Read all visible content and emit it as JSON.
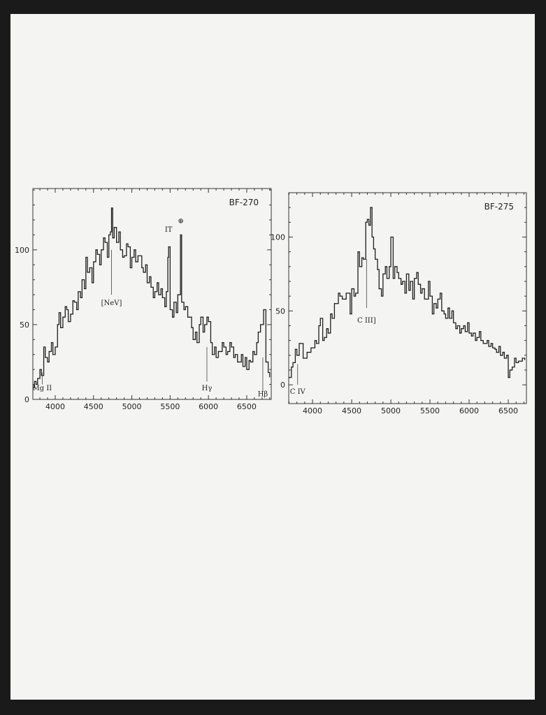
{
  "chart_data": [
    {
      "type": "line",
      "title": "BF-270",
      "xlabel": "",
      "ylabel": "",
      "xlim": [
        3708,
        6820
      ],
      "ylim": [
        0,
        141
      ],
      "xticks": [
        4000,
        4500,
        5000,
        5500,
        6000,
        6500
      ],
      "yticks": [
        0,
        50,
        100
      ],
      "grid": false,
      "annotations": [
        {
          "label": "Mg II",
          "x": 3830,
          "y_line": [
            10,
            18
          ],
          "ly": 6
        },
        {
          "label": "[NeV]",
          "x": 4735,
          "y_line": [
            70,
            100
          ],
          "ly": 63
        },
        {
          "label": "IT",
          "x": 5480,
          "y_line": [
            108,
            108
          ],
          "ly": 112
        },
        {
          "label": "⊕",
          "x": 5640,
          "y_line": [
            118,
            118
          ],
          "ly": 118
        },
        {
          "label": "Hγ",
          "x": 5980,
          "y_line": [
            12,
            35
          ],
          "ly": 6
        },
        {
          "label": "Hβ",
          "x": 6710,
          "y_line": [
            5,
            28
          ],
          "ly": 2
        }
      ],
      "x": [
        3710,
        3730,
        3750,
        3770,
        3800,
        3820,
        3850,
        3870,
        3900,
        3920,
        3950,
        3970,
        4000,
        4030,
        4050,
        4070,
        4100,
        4130,
        4150,
        4170,
        4200,
        4230,
        4250,
        4280,
        4300,
        4330,
        4350,
        4380,
        4400,
        4420,
        4450,
        4480,
        4500,
        4530,
        4550,
        4580,
        4600,
        4630,
        4650,
        4680,
        4700,
        4720,
        4735,
        4750,
        4770,
        4800,
        4830,
        4850,
        4880,
        4900,
        4930,
        4950,
        4980,
        5000,
        5030,
        5050,
        5080,
        5100,
        5130,
        5150,
        5180,
        5200,
        5230,
        5250,
        5280,
        5300,
        5330,
        5350,
        5380,
        5400,
        5430,
        5450,
        5470,
        5480,
        5500,
        5530,
        5550,
        5580,
        5600,
        5620,
        5635,
        5650,
        5680,
        5700,
        5730,
        5750,
        5780,
        5800,
        5830,
        5850,
        5880,
        5900,
        5930,
        5950,
        5980,
        6000,
        6030,
        6050,
        6080,
        6100,
        6130,
        6150,
        6180,
        6200,
        6230,
        6250,
        6280,
        6300,
        6330,
        6350,
        6380,
        6400,
        6430,
        6450,
        6480,
        6500,
        6530,
        6550,
        6580,
        6600,
        6630,
        6650,
        6680,
        6700,
        6720,
        6750,
        6780,
        6800
      ],
      "y": [
        8,
        12,
        10,
        14,
        20,
        16,
        35,
        28,
        25,
        32,
        38,
        30,
        35,
        50,
        58,
        48,
        55,
        62,
        60,
        52,
        57,
        66,
        65,
        60,
        72,
        68,
        80,
        74,
        95,
        85,
        88,
        78,
        92,
        100,
        97,
        90,
        100,
        108,
        105,
        95,
        110,
        112,
        128,
        108,
        115,
        105,
        112,
        100,
        95,
        96,
        104,
        102,
        88,
        95,
        100,
        92,
        96,
        96,
        88,
        85,
        90,
        78,
        82,
        75,
        68,
        72,
        78,
        70,
        74,
        68,
        62,
        72,
        95,
        102,
        60,
        55,
        65,
        58,
        70,
        70,
        110,
        65,
        60,
        62,
        55,
        55,
        48,
        40,
        45,
        38,
        50,
        55,
        45,
        50,
        55,
        52,
        38,
        30,
        35,
        28,
        32,
        32,
        38,
        35,
        30,
        32,
        38,
        35,
        28,
        30,
        25,
        25,
        30,
        22,
        28,
        20,
        26,
        25,
        32,
        30,
        38,
        45,
        50,
        50,
        60,
        25,
        18,
        15
      ]
    },
    {
      "type": "line",
      "title": "BF-275",
      "xlabel": "",
      "ylabel": "",
      "xlim": [
        3696,
        6732
      ],
      "ylim": [
        -12.7,
        130
      ],
      "xticks": [
        4000,
        4500,
        5000,
        5500,
        6000,
        6500
      ],
      "yticks": [
        0,
        50,
        100
      ],
      "grid": false,
      "annotations": [
        {
          "label": "C IV",
          "x": 3810,
          "y_line": [
            0,
            14
          ],
          "ly": -6
        },
        {
          "label": "C III]",
          "x": 4690,
          "y_line": [
            52,
            85
          ],
          "ly": 42
        }
      ],
      "x": [
        3700,
        3730,
        3750,
        3780,
        3800,
        3830,
        3850,
        3880,
        3900,
        3930,
        3950,
        3980,
        4000,
        4030,
        4050,
        4080,
        4100,
        4130,
        4150,
        4180,
        4200,
        4230,
        4250,
        4280,
        4300,
        4330,
        4350,
        4380,
        4400,
        4430,
        4450,
        4480,
        4500,
        4530,
        4550,
        4580,
        4600,
        4630,
        4650,
        4680,
        4700,
        4720,
        4740,
        4760,
        4780,
        4800,
        4830,
        4850,
        4880,
        4900,
        4930,
        4950,
        4980,
        5000,
        5030,
        5050,
        5080,
        5100,
        5130,
        5150,
        5180,
        5200,
        5230,
        5250,
        5280,
        5300,
        5330,
        5350,
        5380,
        5400,
        5430,
        5450,
        5480,
        5500,
        5530,
        5550,
        5580,
        5600,
        5630,
        5650,
        5680,
        5700,
        5730,
        5750,
        5780,
        5800,
        5830,
        5850,
        5880,
        5900,
        5930,
        5950,
        5980,
        6000,
        6030,
        6050,
        6080,
        6100,
        6130,
        6150,
        6180,
        6200,
        6230,
        6250,
        6280,
        6300,
        6330,
        6350,
        6380,
        6400,
        6430,
        6450,
        6480,
        6500,
        6520,
        6550,
        6580,
        6600,
        6630,
        6650,
        6680,
        6710
      ],
      "y": [
        5,
        12,
        15,
        24,
        20,
        28,
        28,
        18,
        18,
        22,
        22,
        25,
        25,
        30,
        28,
        40,
        45,
        30,
        32,
        38,
        35,
        48,
        45,
        55,
        55,
        62,
        60,
        58,
        58,
        62,
        62,
        48,
        65,
        60,
        62,
        90,
        80,
        86,
        85,
        110,
        112,
        108,
        120,
        100,
        92,
        85,
        78,
        65,
        60,
        75,
        80,
        72,
        80,
        100,
        72,
        80,
        76,
        72,
        68,
        70,
        62,
        75,
        64,
        70,
        58,
        72,
        76,
        68,
        62,
        65,
        58,
        58,
        70,
        60,
        48,
        55,
        52,
        58,
        62,
        50,
        48,
        45,
        52,
        45,
        50,
        42,
        38,
        40,
        35,
        38,
        40,
        36,
        42,
        35,
        33,
        35,
        30,
        32,
        36,
        30,
        28,
        28,
        30,
        26,
        28,
        25,
        24,
        22,
        26,
        20,
        22,
        18,
        20,
        5,
        10,
        12,
        18,
        15,
        16,
        16,
        18,
        17
      ]
    }
  ]
}
